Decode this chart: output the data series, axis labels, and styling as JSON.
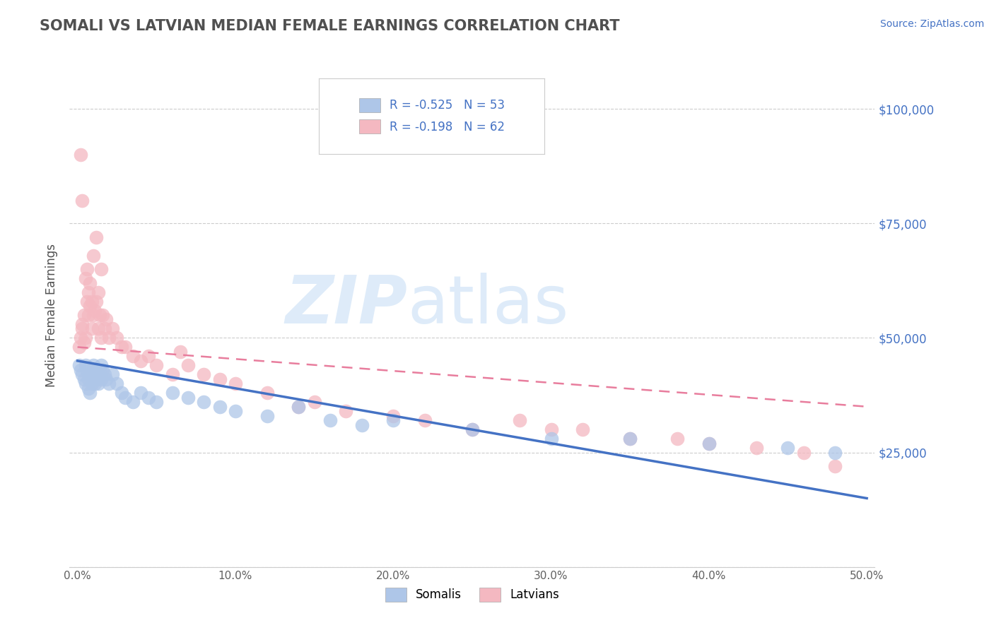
{
  "title": "SOMALI VS LATVIAN MEDIAN FEMALE EARNINGS CORRELATION CHART",
  "source_text": "Source: ZipAtlas.com",
  "ylabel": "Median Female Earnings",
  "xlim": [
    -0.005,
    0.505
  ],
  "ylim": [
    0,
    110000
  ],
  "yticks": [
    0,
    25000,
    50000,
    75000,
    100000
  ],
  "ytick_labels": [
    "",
    "$25,000",
    "$50,000",
    "$75,000",
    "$100,000"
  ],
  "xtick_labels": [
    "0.0%",
    "",
    "",
    "",
    "",
    "",
    "",
    "",
    "",
    "",
    "10.0%",
    "",
    "",
    "",
    "",
    "",
    "",
    "",
    "",
    "",
    "20.0%",
    "",
    "",
    "",
    "",
    "",
    "",
    "",
    "",
    "",
    "30.0%",
    "",
    "",
    "",
    "",
    "",
    "",
    "",
    "",
    "",
    "40.0%",
    "",
    "",
    "",
    "",
    "",
    "",
    "",
    "",
    "",
    "50.0%"
  ],
  "xticks": [
    0.0,
    0.01,
    0.02,
    0.03,
    0.04,
    0.05,
    0.06,
    0.07,
    0.08,
    0.09,
    0.1,
    0.11,
    0.12,
    0.13,
    0.14,
    0.15,
    0.16,
    0.17,
    0.18,
    0.19,
    0.2,
    0.21,
    0.22,
    0.23,
    0.24,
    0.25,
    0.26,
    0.27,
    0.28,
    0.29,
    0.3,
    0.31,
    0.32,
    0.33,
    0.34,
    0.35,
    0.36,
    0.37,
    0.38,
    0.39,
    0.4,
    0.41,
    0.42,
    0.43,
    0.44,
    0.45,
    0.46,
    0.47,
    0.48,
    0.49,
    0.5
  ],
  "somali_color": "#aec6e8",
  "latvian_color": "#f4b8c1",
  "somali_line_color": "#4472c4",
  "latvian_line_color": "#e87d9d",
  "R_somali": -0.525,
  "N_somali": 53,
  "R_latvian": -0.198,
  "N_latvian": 62,
  "legend_label_somali": "Somalis",
  "legend_label_latvian": "Latvians",
  "watermark_zip": "ZIP",
  "watermark_atlas": "atlas",
  "title_color": "#505050",
  "grid_color": "#cccccc",
  "tick_label_color_y": "#4472c4",
  "somali_scatter_x": [
    0.001,
    0.002,
    0.003,
    0.004,
    0.005,
    0.005,
    0.006,
    0.007,
    0.007,
    0.008,
    0.008,
    0.009,
    0.009,
    0.01,
    0.01,
    0.01,
    0.011,
    0.011,
    0.012,
    0.012,
    0.013,
    0.013,
    0.014,
    0.015,
    0.015,
    0.016,
    0.017,
    0.018,
    0.02,
    0.022,
    0.025,
    0.028,
    0.03,
    0.035,
    0.04,
    0.045,
    0.05,
    0.06,
    0.07,
    0.08,
    0.09,
    0.1,
    0.12,
    0.14,
    0.16,
    0.18,
    0.2,
    0.25,
    0.3,
    0.35,
    0.4,
    0.45,
    0.48
  ],
  "somali_scatter_y": [
    44000,
    43000,
    42000,
    41000,
    44000,
    40000,
    43000,
    41000,
    39000,
    42000,
    38000,
    42000,
    40000,
    44000,
    43000,
    41000,
    42000,
    40000,
    43000,
    41000,
    42000,
    40000,
    43000,
    44000,
    41000,
    43000,
    42000,
    41000,
    40000,
    42000,
    40000,
    38000,
    37000,
    36000,
    38000,
    37000,
    36000,
    38000,
    37000,
    36000,
    35000,
    34000,
    33000,
    35000,
    32000,
    31000,
    32000,
    30000,
    28000,
    28000,
    27000,
    26000,
    25000
  ],
  "latvian_scatter_x": [
    0.001,
    0.002,
    0.003,
    0.003,
    0.004,
    0.004,
    0.005,
    0.005,
    0.006,
    0.006,
    0.007,
    0.007,
    0.008,
    0.008,
    0.009,
    0.009,
    0.01,
    0.01,
    0.011,
    0.012,
    0.012,
    0.013,
    0.013,
    0.014,
    0.015,
    0.015,
    0.016,
    0.017,
    0.018,
    0.02,
    0.022,
    0.025,
    0.028,
    0.03,
    0.035,
    0.04,
    0.045,
    0.05,
    0.06,
    0.065,
    0.07,
    0.08,
    0.09,
    0.1,
    0.12,
    0.14,
    0.15,
    0.17,
    0.2,
    0.22,
    0.25,
    0.28,
    0.3,
    0.32,
    0.35,
    0.38,
    0.4,
    0.43,
    0.46,
    0.48,
    0.002,
    0.003
  ],
  "latvian_scatter_y": [
    48000,
    50000,
    52000,
    53000,
    49000,
    55000,
    50000,
    63000,
    58000,
    65000,
    60000,
    55000,
    62000,
    57000,
    52000,
    58000,
    55000,
    68000,
    56000,
    72000,
    58000,
    60000,
    52000,
    55000,
    50000,
    65000,
    55000,
    52000,
    54000,
    50000,
    52000,
    50000,
    48000,
    48000,
    46000,
    45000,
    46000,
    44000,
    42000,
    47000,
    44000,
    42000,
    41000,
    40000,
    38000,
    35000,
    36000,
    34000,
    33000,
    32000,
    30000,
    32000,
    30000,
    30000,
    28000,
    28000,
    27000,
    26000,
    25000,
    22000,
    90000,
    80000
  ]
}
